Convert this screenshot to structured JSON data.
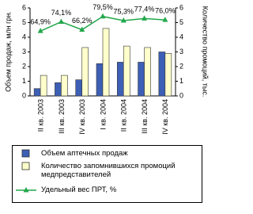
{
  "chart_data": {
    "type": "bar",
    "y_label": "Объем продаж, млн грн.",
    "y2_label": "Количество промоций, тыс.",
    "categories": [
      "II кв. 2003",
      "III кв. 2003",
      "IV кв. 2003",
      "I кв. 2004",
      "II кв. 2004",
      "III кв. 2004",
      "IV кв. 2004"
    ],
    "ylim": [
      0,
      6
    ],
    "yticks": [
      0,
      1,
      2,
      3,
      4,
      5,
      6
    ],
    "y2lim": [
      0,
      6
    ],
    "y2ticks": [
      0,
      1,
      2,
      3,
      4,
      5,
      6
    ],
    "y3lim": [
      0,
      88
    ],
    "grid": false,
    "series": [
      {
        "name": "Объем аптечных продаж",
        "type": "bar",
        "color": "#3d5fb5",
        "values": [
          0.5,
          0.9,
          1.1,
          2.2,
          2.3,
          2.3,
          3.0
        ]
      },
      {
        "name": "Количество запомнившихся промоций медпредставителей",
        "type": "bar",
        "axis": "y2",
        "color": "#ffffcc",
        "values": [
          1.4,
          1.4,
          3.3,
          4.6,
          3.4,
          3.3,
          2.9
        ]
      },
      {
        "name": "Удельный вес ПРТ, %",
        "type": "line",
        "axis": "y3",
        "color": "#22a84a",
        "values": [
          64.9,
          74.1,
          66.2,
          79.5,
          75.3,
          77.4,
          76.0
        ],
        "value_labels": [
          "64,9%",
          "74,1%",
          "66,2%",
          "79,5%",
          "75,3%",
          "77,4%",
          "76,0%"
        ]
      }
    ]
  }
}
